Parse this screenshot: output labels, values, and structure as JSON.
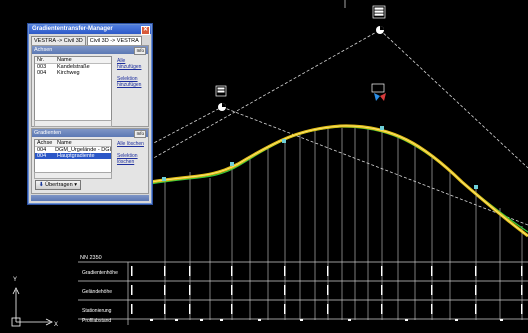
{
  "dialog": {
    "title": "Gradiententransfer-Manager",
    "close_glyph": "✕",
    "tabs": [
      "VESTRA -> Civil 3D",
      "Civil 3D -> VESTRA"
    ],
    "axes_section": {
      "title": "Achsen",
      "info": "Info",
      "columns": [
        "Nr.",
        "Name"
      ],
      "rows": [
        {
          "nr": "003",
          "name": "Kandelstraße"
        },
        {
          "nr": "004",
          "name": "Kirchweg"
        }
      ],
      "link_add_all": "Alle hinzufügen",
      "link_add_selection": "Selektion hinzufügen"
    },
    "gradients_section": {
      "title": "Gradienten",
      "info": "Info",
      "columns": [
        "Achse",
        "Name"
      ],
      "rows": [
        {
          "nr": "004",
          "name": "DGM_Urgelände - DGI",
          "selected": false
        },
        {
          "nr": "004",
          "name": "Hauptgradiente",
          "selected": true
        }
      ],
      "link_delete_all": "Alle löschen",
      "link_delete_selection": "Selektion löschen"
    },
    "transfer_button": "Übertragen"
  },
  "profile_table": {
    "header": "NN 2350",
    "rows": [
      "Gradientenhöhe",
      "Geländehöhe",
      "Stationierung",
      "Profilabstand"
    ]
  },
  "colors": {
    "background": "#000000",
    "gradient_line": "#e6c21a",
    "terrain_line": "#39c83a",
    "grid_lines": "#cfcfcf",
    "dialog_accent": "#2e5ac8"
  },
  "icons": [
    "close-icon",
    "download-arrow-icon",
    "ucs-axis-icon",
    "compass-icon"
  ]
}
